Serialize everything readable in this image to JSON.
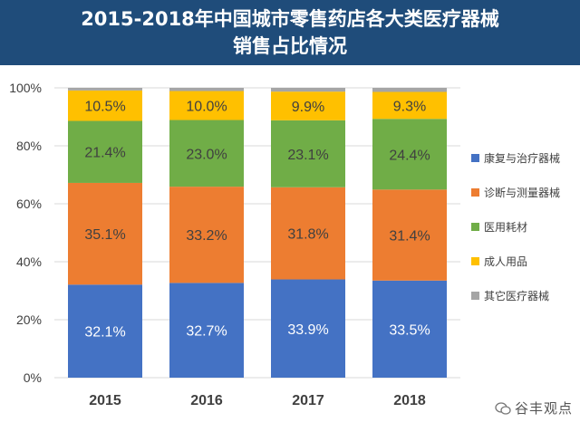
{
  "title": {
    "line1": "2015-2018年中国城市零售药店各大类医疗器械",
    "line2": "销售占比情况"
  },
  "watermark": "谷丰观点",
  "chart_data": {
    "type": "bar",
    "stacked": true,
    "categories": [
      "2015",
      "2016",
      "2017",
      "2018"
    ],
    "ylim": [
      0,
      100
    ],
    "yticks": [
      "0%",
      "20%",
      "40%",
      "60%",
      "80%",
      "100%"
    ],
    "grid": true,
    "legend_position": "right",
    "series": [
      {
        "name": "康复与治疗器械",
        "color": "#4472c4",
        "values": [
          32.1,
          32.7,
          33.9,
          33.5
        ],
        "labels": [
          "32.1%",
          "32.7%",
          "33.9%",
          "33.5%"
        ]
      },
      {
        "name": "诊断与测量器械",
        "color": "#ed7d31",
        "values": [
          35.1,
          33.2,
          31.8,
          31.4
        ],
        "labels": [
          "35.1%",
          "33.2%",
          "31.8%",
          "31.4%"
        ]
      },
      {
        "name": "医用耗材",
        "color": "#70ad47",
        "values": [
          21.4,
          23.0,
          23.1,
          24.4
        ],
        "labels": [
          "21.4%",
          "23.0%",
          "23.1%",
          "24.4%"
        ]
      },
      {
        "name": "成人用品",
        "color": "#ffc000",
        "values": [
          10.5,
          10.0,
          9.9,
          9.3
        ],
        "labels": [
          "10.5%",
          "10.0%",
          "9.9%",
          "9.3%"
        ]
      },
      {
        "name": "其它医疗器械",
        "color": "#a5a5a5",
        "values": [
          0.9,
          1.1,
          1.3,
          1.4
        ],
        "labels": [
          "",
          "",
          "",
          ""
        ]
      }
    ]
  }
}
